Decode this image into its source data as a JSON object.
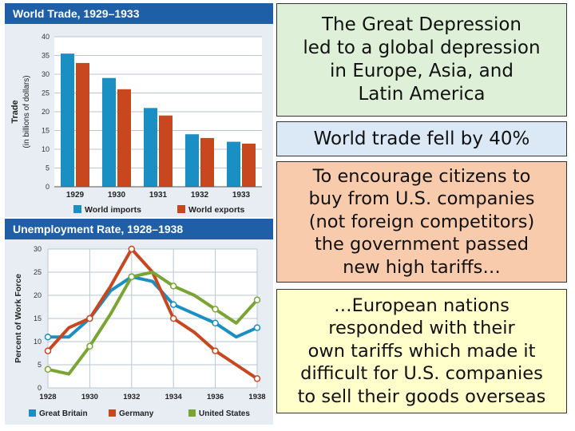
{
  "chart_data": [
    {
      "type": "bar",
      "title": "World Trade, 1929–1933",
      "ylabel": "Trade\n(in billions of dollars)",
      "categories": [
        "1929",
        "1930",
        "1931",
        "1932",
        "1933"
      ],
      "series": [
        {
          "name": "World imports",
          "color": "#1a8fc4",
          "values": [
            35.5,
            29,
            21,
            14,
            12
          ]
        },
        {
          "name": "World exports",
          "color": "#c9471f",
          "values": [
            33,
            26,
            19,
            13,
            11.5
          ]
        }
      ],
      "ylim": [
        0,
        40
      ],
      "yticks": [
        "0",
        "5",
        "10",
        "15",
        "20",
        "25",
        "30",
        "35",
        "40"
      ],
      "grid": true,
      "legend": "bottom"
    },
    {
      "type": "line",
      "title": "Unemployment Rate, 1928–1938",
      "ylabel": "Percent of Work Force",
      "x": [
        1928,
        1929,
        1930,
        1931,
        1932,
        1933,
        1934,
        1935,
        1936,
        1937,
        1938
      ],
      "xticks": [
        "1928",
        "1930",
        "1932",
        "1934",
        "1936",
        "1938"
      ],
      "series": [
        {
          "name": "Great Britain",
          "color": "#1a8fc4",
          "values": [
            11,
            11,
            15,
            21,
            24,
            23,
            18,
            16,
            14,
            11,
            13
          ]
        },
        {
          "name": "Germany",
          "color": "#c9471f",
          "values": [
            8,
            13,
            15,
            22,
            30,
            25,
            15,
            12,
            8,
            5,
            2
          ]
        },
        {
          "name": "United States",
          "color": "#7aa534",
          "values": [
            4,
            3,
            9,
            16,
            24,
            25,
            22,
            20,
            17,
            14,
            19
          ]
        }
      ],
      "ylim": [
        0,
        30
      ],
      "yticks": [
        "0",
        "5",
        "10",
        "15",
        "20",
        "25",
        "30"
      ],
      "grid": true,
      "legend": "bottom"
    }
  ],
  "text_boxes": [
    {
      "lines": [
        "The Great Depression",
        "led to a global depression",
        "in Europe, Asia, and",
        "Latin America"
      ],
      "color": "#dff0d8"
    },
    {
      "lines": [
        "World trade fell by 40%"
      ],
      "color": "#dbe8f6"
    },
    {
      "lines": [
        "To encourage citizens to",
        "buy from U.S. companies",
        "(not foreign competitors)",
        "the government passed",
        "new high tariffs…"
      ],
      "color": "#f8cbad"
    },
    {
      "lines": [
        "…European nations",
        "responded with their",
        "own tariffs which made it",
        "difficult for U.S. companies",
        "to sell their goods overseas"
      ],
      "color": "#ffffcc"
    }
  ]
}
